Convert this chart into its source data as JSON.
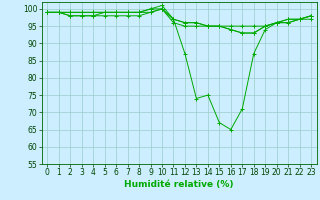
{
  "title": "",
  "xlabel": "Humidité relative (%)",
  "ylabel": "",
  "background_color": "#cceeff",
  "grid_color": "#99cccc",
  "line_color": "#00aa00",
  "marker": "+",
  "xlim": [
    -0.5,
    23.5
  ],
  "ylim": [
    55,
    102
  ],
  "yticks": [
    55,
    60,
    65,
    70,
    75,
    80,
    85,
    90,
    95,
    100
  ],
  "xticks": [
    0,
    1,
    2,
    3,
    4,
    5,
    6,
    7,
    8,
    9,
    10,
    11,
    12,
    13,
    14,
    15,
    16,
    17,
    18,
    19,
    20,
    21,
    22,
    23
  ],
  "series": [
    [
      99,
      99,
      99,
      99,
      99,
      99,
      99,
      99,
      99,
      100,
      101,
      97,
      87,
      74,
      75,
      67,
      65,
      71,
      87,
      94,
      96,
      96,
      97,
      97
    ],
    [
      99,
      99,
      99,
      99,
      99,
      99,
      99,
      99,
      99,
      99,
      100,
      96,
      95,
      95,
      95,
      95,
      95,
      95,
      95,
      95,
      96,
      96,
      97,
      98
    ],
    [
      99,
      99,
      98,
      98,
      98,
      98,
      98,
      98,
      98,
      99,
      100,
      97,
      96,
      96,
      95,
      95,
      94,
      93,
      93,
      95,
      96,
      97,
      97,
      98
    ],
    [
      99,
      99,
      98,
      98,
      98,
      99,
      99,
      99,
      99,
      100,
      100,
      97,
      96,
      96,
      95,
      95,
      94,
      93,
      93,
      95,
      96,
      97,
      97,
      98
    ]
  ],
  "tick_fontsize": 5.5,
  "xlabel_fontsize": 6.5,
  "linewidth": 0.7,
  "markersize": 2.5,
  "markeredgewidth": 0.7
}
